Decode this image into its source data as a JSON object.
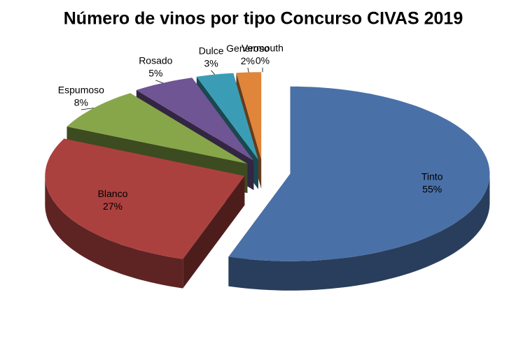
{
  "chart_data": {
    "type": "pie3d",
    "title": "Número de vinos por tipo Concurso CIVAS 2019",
    "categories": [
      "Tinto",
      "Blanco",
      "Espumoso",
      "Rosado",
      "Dulce",
      "Generoso",
      "Vermouth"
    ],
    "values": [
      55,
      27,
      8,
      5,
      3,
      2,
      0
    ],
    "value_labels": [
      "55%",
      "27%",
      "8%",
      "5%",
      "3%",
      "2%",
      "0%"
    ],
    "colors": [
      "#4a70a8",
      "#ab413f",
      "#87a64a",
      "#6f5594",
      "#3b9db5",
      "#e0853a",
      "#a9bfe2"
    ]
  }
}
